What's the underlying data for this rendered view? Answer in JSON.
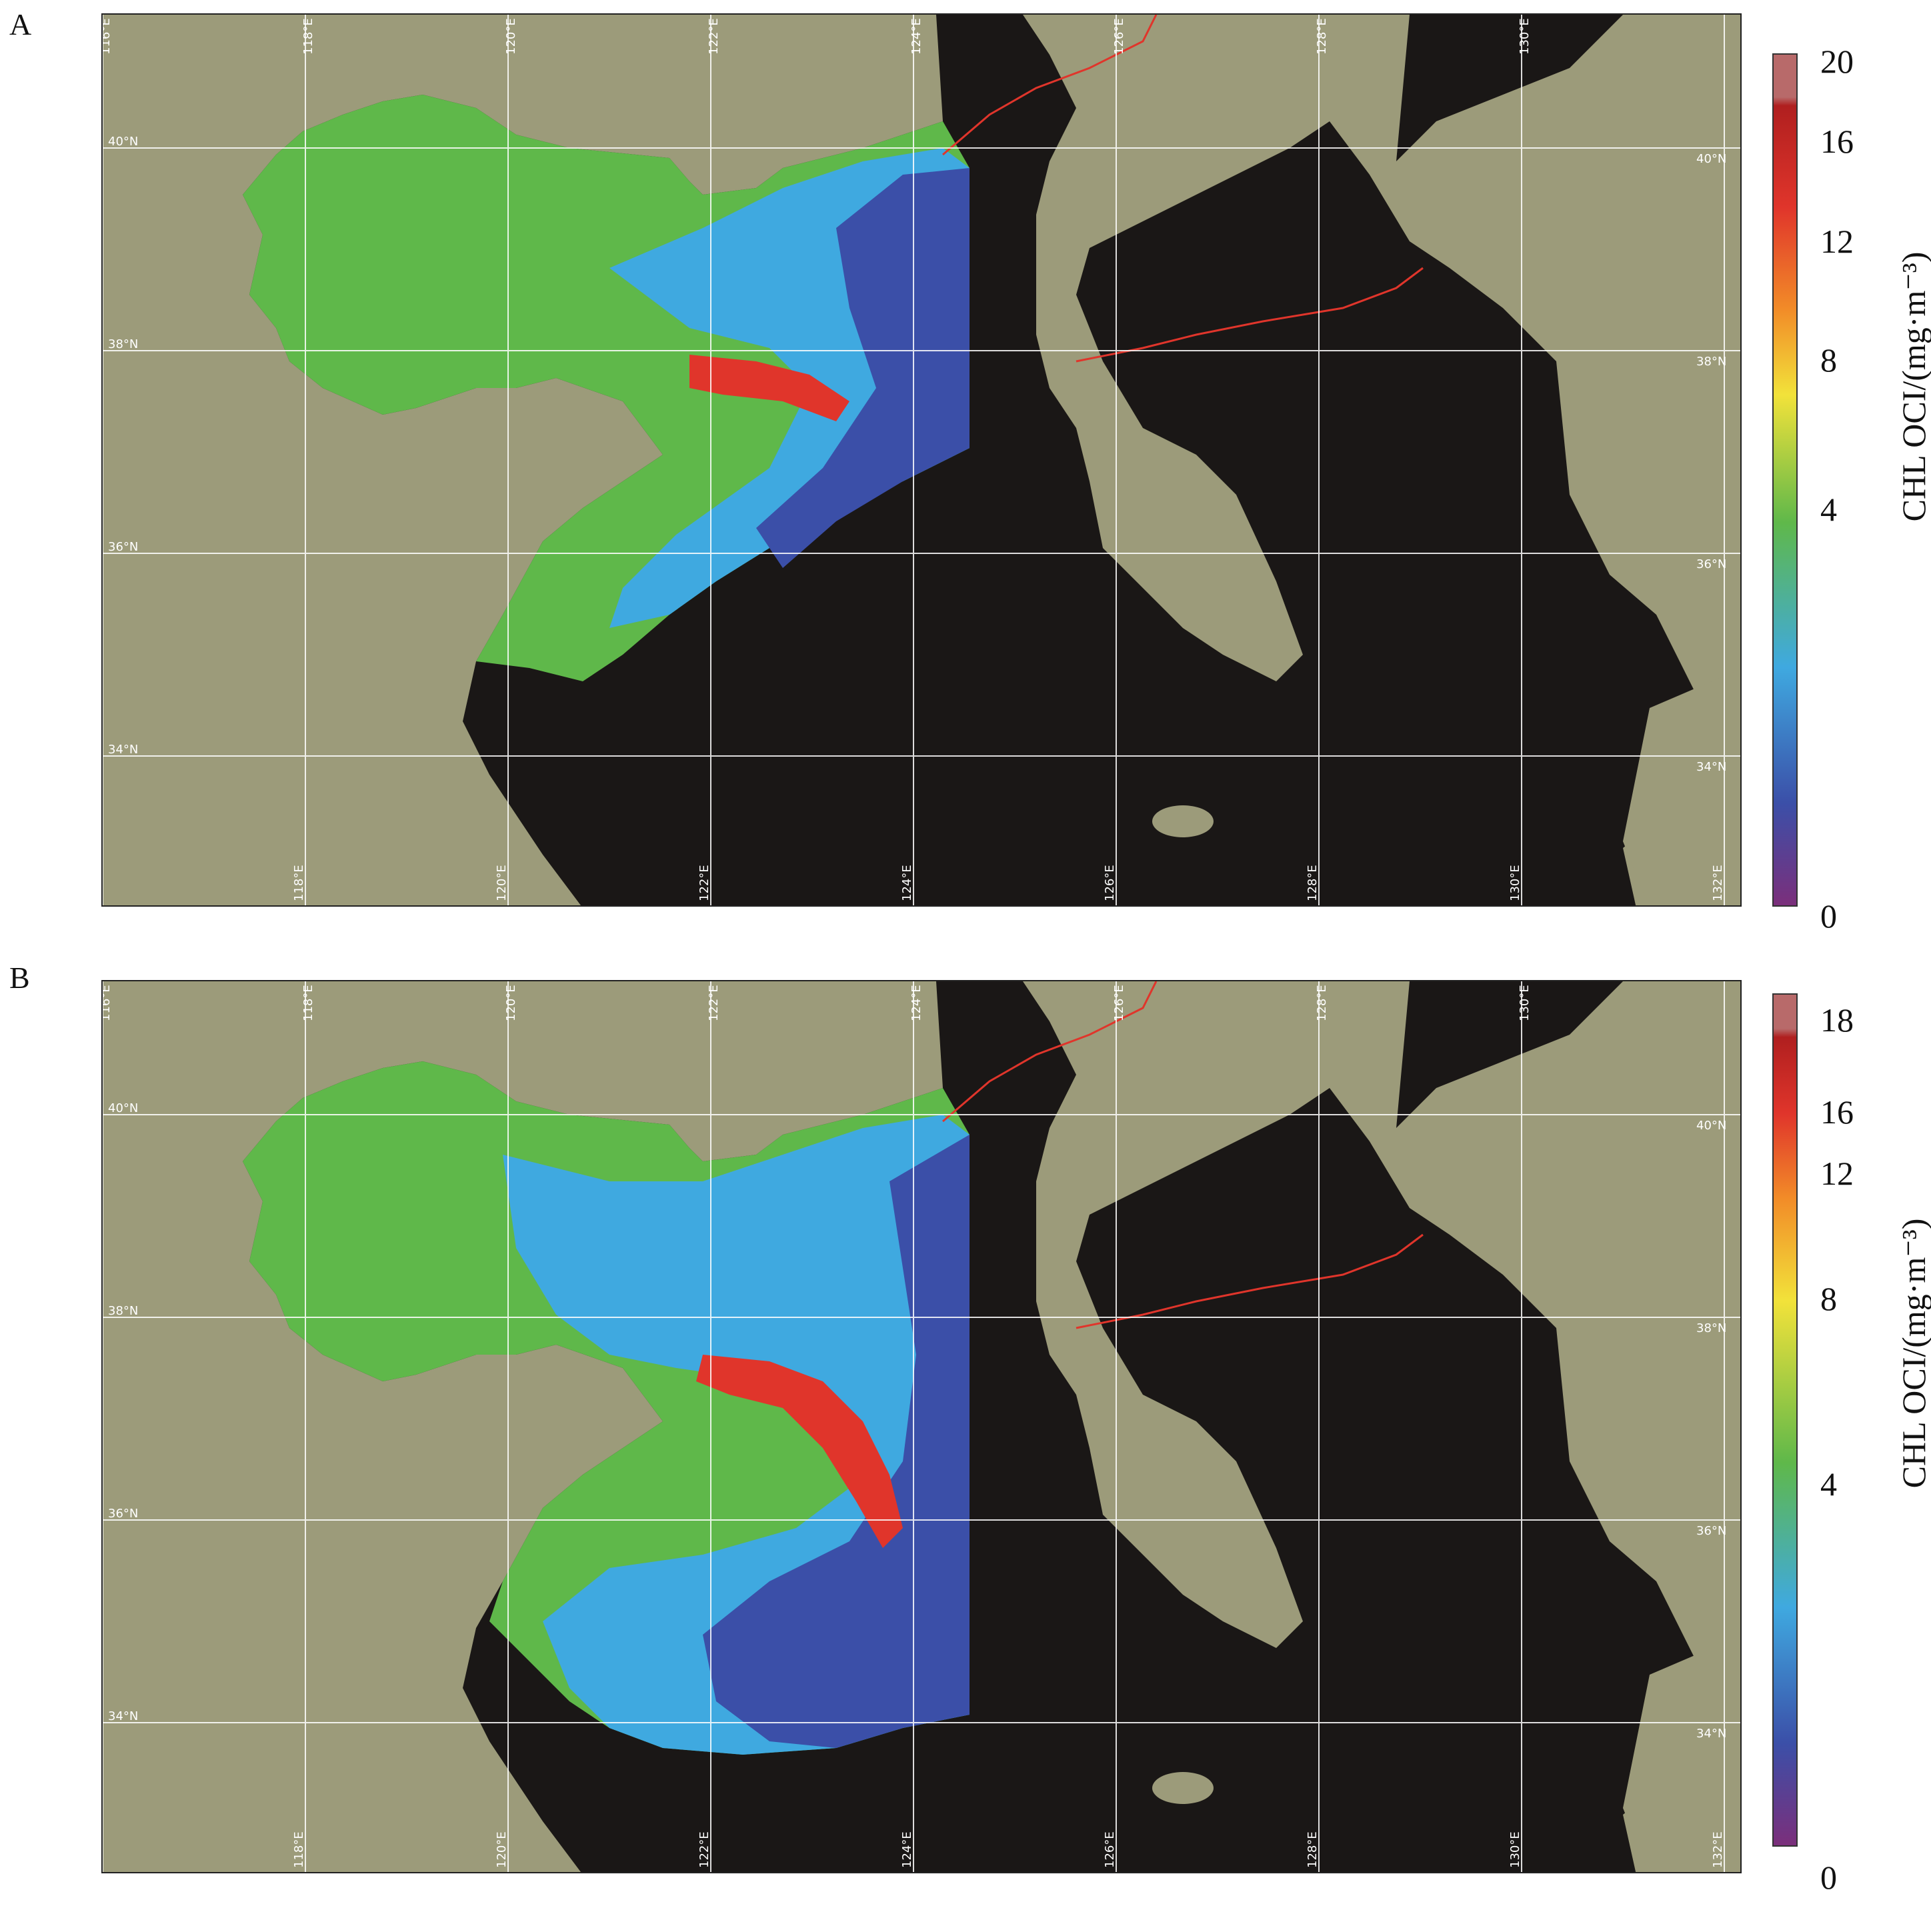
{
  "panels": [
    {
      "letter": "A",
      "lon_labels_top": [
        "116°E",
        "118°E",
        "120°E",
        "122°E",
        "124°E",
        "126°E",
        "128°E",
        "130°E"
      ],
      "lon_labels_bottom": [
        "118°E",
        "120°E",
        "122°E",
        "124°E",
        "126°E",
        "128°E",
        "130°E",
        "132°E"
      ],
      "lat_labels_left": [
        "40°N",
        "38°N",
        "36°N",
        "34°N"
      ],
      "lat_labels_right": [
        "40°N",
        "38°N",
        "36°N",
        "34°N"
      ],
      "colorbar": {
        "title": "CHL OCI/(mg·m⁻³)",
        "ticks": [
          "20",
          "16",
          "12",
          "8",
          "4",
          "0"
        ]
      }
    },
    {
      "letter": "B",
      "lon_labels_top": [
        "116°E",
        "118°E",
        "120°E",
        "122°E",
        "124°E",
        "126°E",
        "128°E",
        "130°E"
      ],
      "lon_labels_bottom": [
        "118°E",
        "120°E",
        "122°E",
        "124°E",
        "126°E",
        "128°E",
        "130°E",
        "132°E"
      ],
      "lat_labels_left": [
        "40°N",
        "38°N",
        "36°N",
        "34°N"
      ],
      "lat_labels_right": [
        "40°N",
        "38°N",
        "36°N",
        "34°N"
      ],
      "colorbar": {
        "title": "CHL OCI/(mg·m⁻³)",
        "ticks": [
          "18",
          "16",
          "12",
          "8",
          "4",
          "0"
        ]
      }
    }
  ],
  "colors": {
    "land": "#9c9b7a",
    "no_data": "#1a1716",
    "gridline": "#ffffff",
    "border_line": "#e0352b",
    "colorbar_stops": [
      "#7b2f7b",
      "#3b4fa8",
      "#3fa9e0",
      "#5fb84a",
      "#f2e23a",
      "#f28c28",
      "#e0352b",
      "#b01f1f",
      "#b86a6a"
    ]
  }
}
